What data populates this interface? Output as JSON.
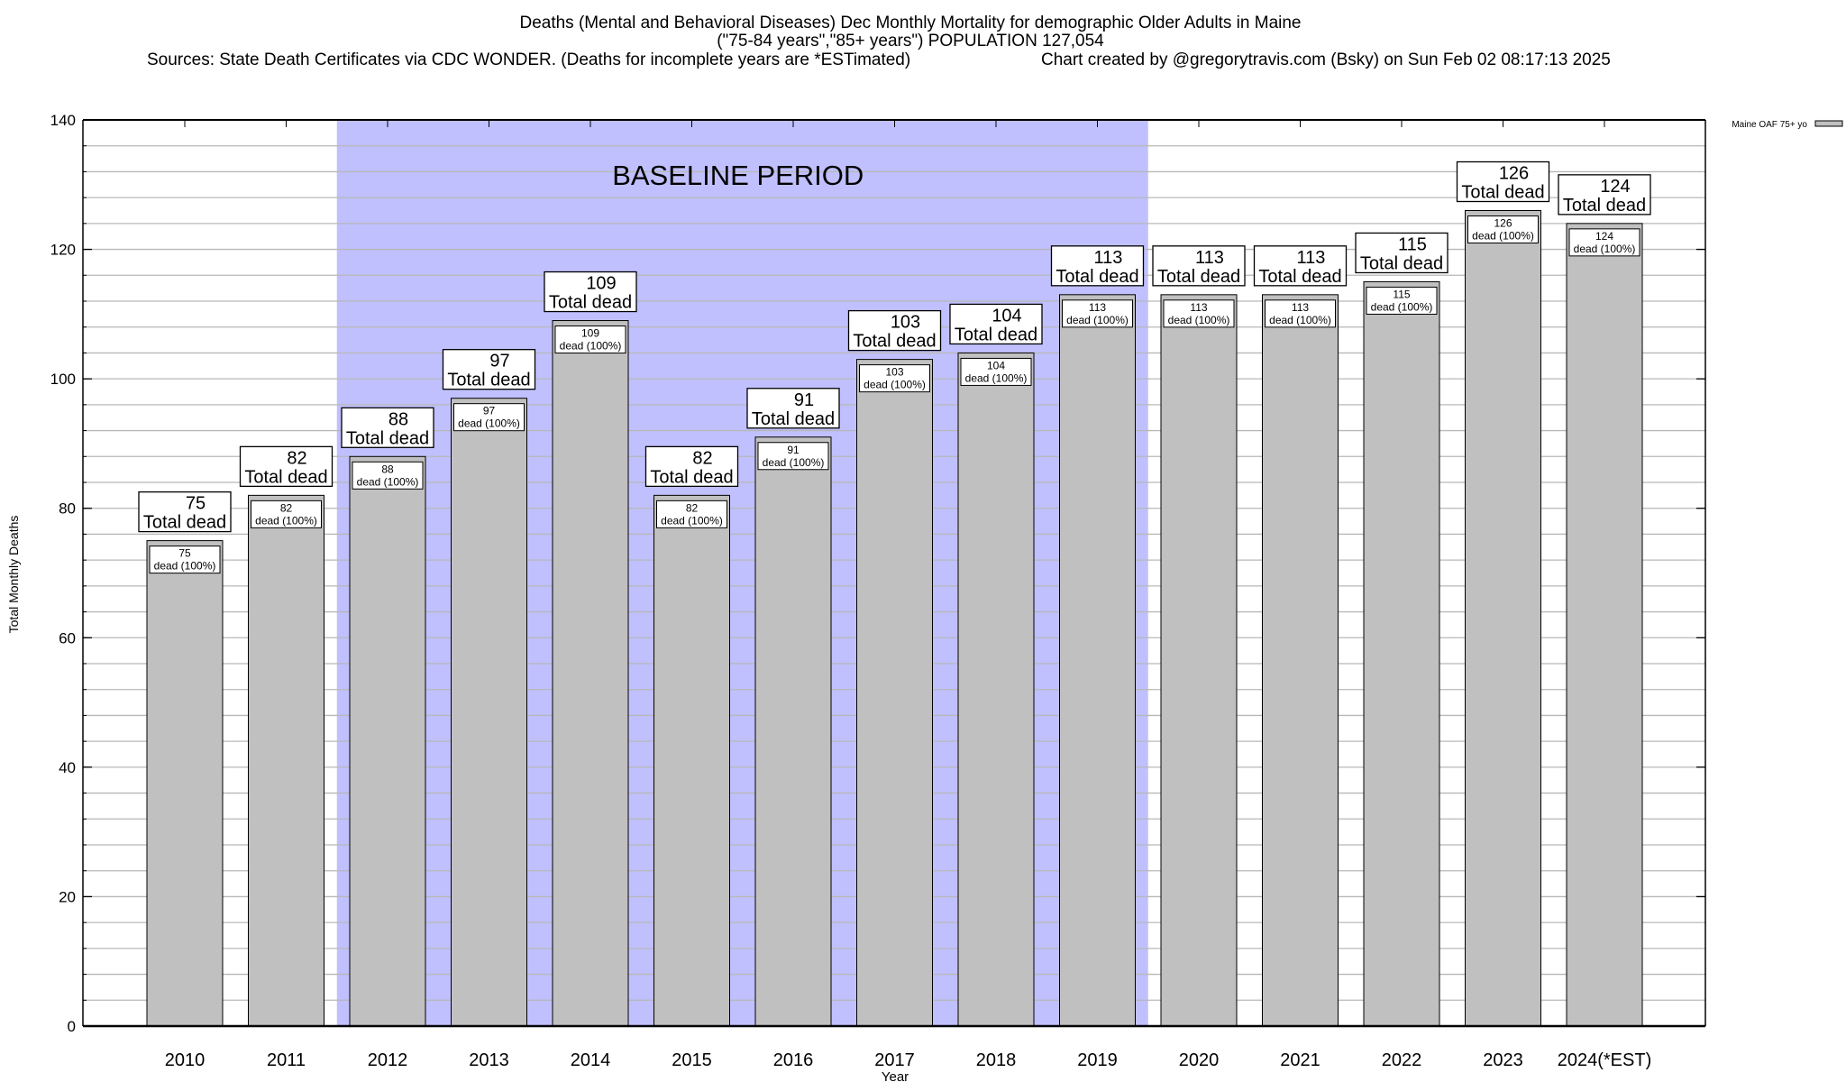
{
  "chart_data": {
    "type": "bar",
    "title_lines": [
      "Deaths (Mental and Behavioral Diseases) Dec Monthly Mortality for demographic Older Adults in Maine",
      "(\"75-84 years\",\"85+ years\") POPULATION 127,054"
    ],
    "sources": "Sources: State Death Certificates via CDC WONDER. (Deaths for incomplete years are *ESTimated)",
    "credit": "Chart created by @gregorytravis.com (Bsky) on Sun Feb 02 08:17:13 2025",
    "xlabel": "Year",
    "ylabel": "Total Monthly Deaths",
    "ylim": [
      0,
      140
    ],
    "y_major_ticks": [
      0,
      20,
      40,
      60,
      80,
      100,
      120,
      140
    ],
    "y_minor_step": 4,
    "grid": true,
    "categories": [
      "2010",
      "2011",
      "2012",
      "2013",
      "2014",
      "2015",
      "2016",
      "2017",
      "2018",
      "2019",
      "2020",
      "2021",
      "2022",
      "2023",
      "2024(*EST)"
    ],
    "series": [
      {
        "name": "Maine OAF 75+ yo",
        "color": "#c0c0c0",
        "values": [
          75,
          82,
          88,
          97,
          109,
          82,
          91,
          103,
          104,
          113,
          113,
          113,
          115,
          126,
          124
        ]
      }
    ],
    "bar_label_suffix": "Total dead",
    "inner_label_suffix": "dead (100%)",
    "baseline": {
      "label": "BASELINE PERIOD",
      "from": "2012",
      "to": "2019",
      "color": "#c0c0ff"
    },
    "legend": {
      "placement": "top-right outside"
    }
  }
}
